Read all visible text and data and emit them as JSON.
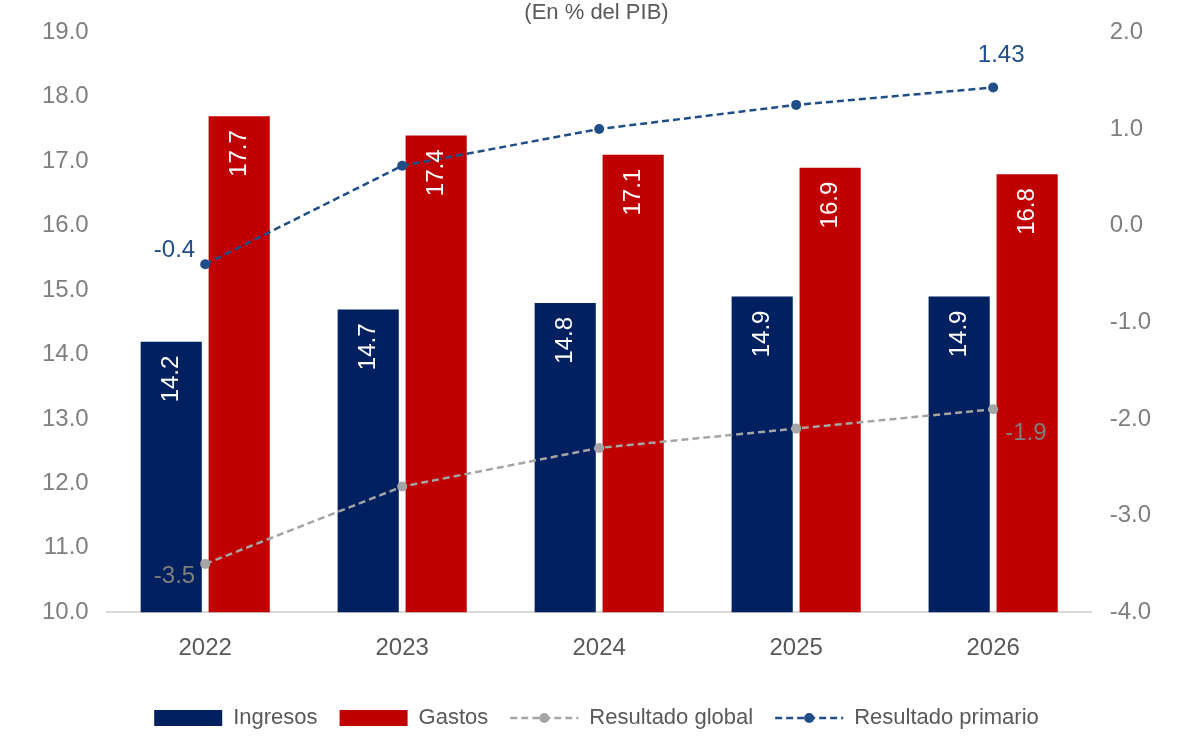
{
  "chart_data": {
    "type": "bar",
    "subtitle": "(En % del PIB)",
    "categories": [
      "2022",
      "2023",
      "2024",
      "2025",
      "2026"
    ],
    "series": [
      {
        "name": "Ingresos",
        "color": "#002060",
        "values": [
          14.2,
          14.7,
          14.8,
          14.9,
          14.9
        ],
        "value_labels": [
          "14.2",
          "14.7",
          "14.8",
          "14.9",
          "14.9"
        ]
      },
      {
        "name": "Gastos",
        "color": "#c00000",
        "values": [
          17.7,
          17.4,
          17.1,
          16.9,
          16.8
        ],
        "value_labels": [
          "17.7",
          "17.4",
          "17.1",
          "16.9",
          "16.8"
        ]
      },
      {
        "name": "Resultado global",
        "type": "line",
        "axis": "y2",
        "color": "#a5a5a5",
        "values": [
          -3.5,
          -2.7,
          -2.3,
          -2.1,
          -1.9
        ],
        "value_labels": [
          "-3.5",
          null,
          null,
          null,
          "-1.9"
        ]
      },
      {
        "name": "Resultado primario",
        "type": "line",
        "axis": "y2",
        "color": "#1f4e89",
        "values": [
          -0.4,
          0.62,
          1.0,
          1.25,
          1.43
        ],
        "value_labels": [
          "-0.4",
          null,
          null,
          null,
          "1.43"
        ]
      }
    ],
    "ylim": [
      10,
      19
    ],
    "yticks": [
      {
        "value": 10,
        "label": "10.0"
      },
      {
        "value": 11,
        "label": "11.0"
      },
      {
        "value": 12,
        "label": "12.0"
      },
      {
        "value": 13,
        "label": "13.0"
      },
      {
        "value": 14,
        "label": "14.0"
      },
      {
        "value": 15,
        "label": "15.0"
      },
      {
        "value": 16,
        "label": "16.0"
      },
      {
        "value": 17,
        "label": "17.0"
      },
      {
        "value": 18,
        "label": "18.0"
      },
      {
        "value": 19,
        "label": "19.0"
      }
    ],
    "y2lim": [
      -4,
      2
    ],
    "y2ticks": [
      {
        "value": -4,
        "label": "-4.0"
      },
      {
        "value": -3,
        "label": "-3.0"
      },
      {
        "value": -2,
        "label": "-2.0"
      },
      {
        "value": -1,
        "label": "-1.0"
      },
      {
        "value": 0,
        "label": "0.0"
      },
      {
        "value": 1,
        "label": "1.0"
      },
      {
        "value": 2,
        "label": "2.0"
      }
    ],
    "legend": "bottom",
    "marker": "circle",
    "line_style": "dashed"
  }
}
